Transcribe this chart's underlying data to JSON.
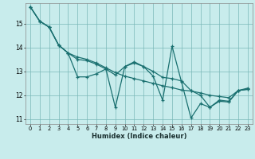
{
  "title": "",
  "xlabel": "Humidex (Indice chaleur)",
  "background_color": "#c8ecec",
  "grid_color": "#7ab8b8",
  "line_color": "#1a7070",
  "xlim": [
    -0.5,
    23.5
  ],
  "ylim": [
    10.8,
    15.85
  ],
  "yticks": [
    11,
    12,
    13,
    14,
    15
  ],
  "xtick_labels": [
    "0",
    "1",
    "2",
    "3",
    "4",
    "5",
    "6",
    "7",
    "8",
    "9",
    "10",
    "11",
    "12",
    "13",
    "14",
    "15",
    "16",
    "17",
    "18",
    "19",
    "20",
    "21",
    "22",
    "23"
  ],
  "series1": [
    15.7,
    15.1,
    14.85,
    14.1,
    13.77,
    12.77,
    12.77,
    12.9,
    13.1,
    11.5,
    13.2,
    13.35,
    13.2,
    12.8,
    11.8,
    14.05,
    12.55,
    11.05,
    11.65,
    11.5,
    11.8,
    11.75,
    12.2,
    12.3
  ],
  "series2": [
    15.7,
    15.1,
    14.85,
    14.1,
    13.77,
    13.6,
    13.5,
    13.35,
    13.15,
    12.95,
    12.8,
    12.7,
    12.6,
    12.5,
    12.4,
    12.32,
    12.22,
    12.18,
    12.1,
    12.0,
    11.95,
    11.9,
    12.2,
    12.25
  ],
  "series3": [
    15.7,
    15.1,
    14.85,
    14.1,
    13.77,
    13.5,
    13.45,
    13.3,
    13.1,
    12.85,
    13.2,
    13.4,
    13.2,
    13.0,
    12.75,
    12.7,
    12.6,
    12.2,
    12.0,
    11.5,
    11.75,
    11.72,
    12.2,
    12.25
  ]
}
